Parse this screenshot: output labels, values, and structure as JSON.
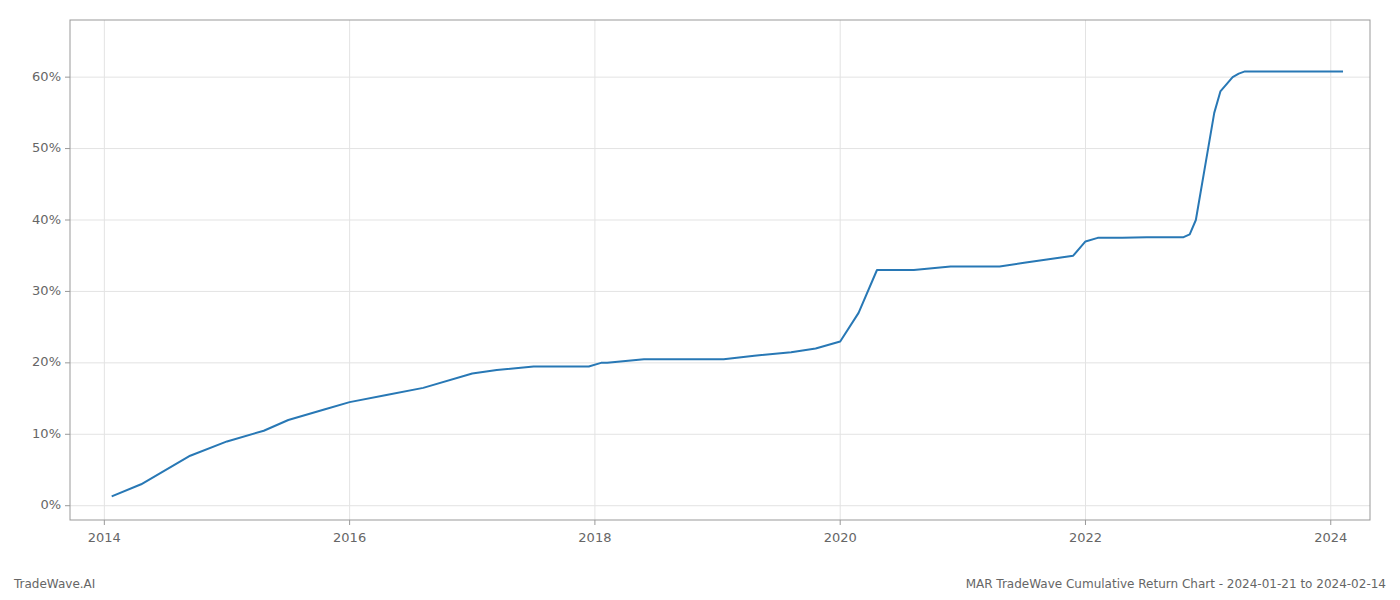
{
  "chart_data": {
    "type": "line",
    "x": [
      2014.06,
      2014.3,
      2014.7,
      2015.0,
      2015.3,
      2015.5,
      2015.8,
      2016.0,
      2016.3,
      2016.6,
      2017.0,
      2017.2,
      2017.5,
      2017.7,
      2017.85,
      2017.95,
      2018.05,
      2018.1,
      2018.4,
      2018.7,
      2018.9,
      2019.0,
      2019.05,
      2019.3,
      2019.6,
      2019.8,
      2019.9,
      2020.0,
      2020.15,
      2020.3,
      2020.6,
      2020.9,
      2021.0,
      2021.3,
      2021.5,
      2021.7,
      2021.9,
      2022.0,
      2022.1,
      2022.3,
      2022.5,
      2022.7,
      2022.8,
      2022.85,
      2022.9,
      2023.0,
      2023.05,
      2023.1,
      2023.2,
      2023.25,
      2023.3,
      2023.5,
      2023.7,
      2023.9,
      2024.0,
      2024.1
    ],
    "values": [
      0.013,
      0.03,
      0.07,
      0.09,
      0.105,
      0.12,
      0.135,
      0.145,
      0.155,
      0.165,
      0.185,
      0.19,
      0.195,
      0.195,
      0.195,
      0.195,
      0.2,
      0.2,
      0.205,
      0.205,
      0.205,
      0.205,
      0.205,
      0.21,
      0.215,
      0.22,
      0.225,
      0.23,
      0.27,
      0.33,
      0.33,
      0.335,
      0.335,
      0.335,
      0.34,
      0.345,
      0.35,
      0.37,
      0.375,
      0.375,
      0.376,
      0.376,
      0.376,
      0.38,
      0.4,
      0.5,
      0.55,
      0.58,
      0.6,
      0.605,
      0.608,
      0.608,
      0.608,
      0.608,
      0.608,
      0.608
    ],
    "color": "#2878b5",
    "xlim": [
      2013.72,
      2024.32
    ],
    "ylim": [
      -0.02,
      0.68
    ],
    "xticks": [
      2014,
      2016,
      2018,
      2020,
      2022,
      2024
    ],
    "yticks": [
      {
        "value": 0.0,
        "label": "0%"
      },
      {
        "value": 0.1,
        "label": "10%"
      },
      {
        "value": 0.2,
        "label": "20%"
      },
      {
        "value": 0.3,
        "label": "30%"
      },
      {
        "value": 0.4,
        "label": "40%"
      },
      {
        "value": 0.5,
        "label": "50%"
      },
      {
        "value": 0.6,
        "label": "60%"
      }
    ],
    "grid": true,
    "annotations": [
      "TradeWave.AI",
      "MAR TradeWave Cumulative Return Chart - 2024-01-21 to 2024-02-14"
    ]
  }
}
